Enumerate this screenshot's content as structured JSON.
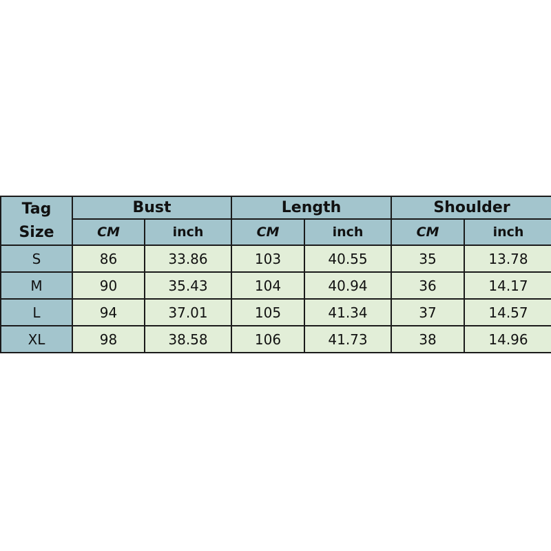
{
  "header": {
    "tag_label": "Tag",
    "size_label": "Size",
    "groups": [
      "Bust",
      "Length",
      "Shoulder"
    ],
    "units": [
      "CM",
      "inch",
      "CM",
      "inch",
      "CM",
      "inch"
    ]
  },
  "rows": [
    {
      "size": "S",
      "values": [
        "86",
        "33.86",
        "103",
        "40.55",
        "35",
        "13.78"
      ]
    },
    {
      "size": "M",
      "values": [
        "90",
        "35.43",
        "104",
        "40.94",
        "36",
        "14.17"
      ]
    },
    {
      "size": "L",
      "values": [
        "94",
        "37.01",
        "105",
        "41.34",
        "37",
        "14.57"
      ]
    },
    {
      "size": "XL",
      "values": [
        "98",
        "38.58",
        "106",
        "41.73",
        "38",
        "14.96"
      ]
    }
  ],
  "colors": {
    "header_bg": "#a3c5cd",
    "cell_bg": "#e2eed8"
  }
}
